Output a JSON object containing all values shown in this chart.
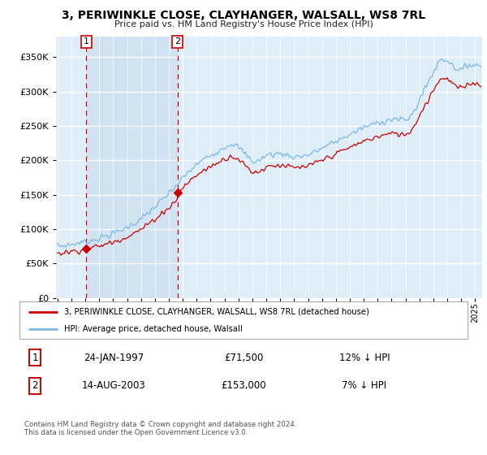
{
  "title": "3, PERIWINKLE CLOSE, CLAYHANGER, WALSALL, WS8 7RL",
  "subtitle": "Price paid vs. HM Land Registry's House Price Index (HPI)",
  "legend_line1": "3, PERIWINKLE CLOSE, CLAYHANGER, WALSALL, WS8 7RL (detached house)",
  "legend_line2": "HPI: Average price, detached house, Walsall",
  "sale1_label": "1",
  "sale1_date": "24-JAN-1997",
  "sale1_price": "£71,500",
  "sale1_hpi": "12% ↓ HPI",
  "sale2_label": "2",
  "sale2_date": "14-AUG-2003",
  "sale2_price": "£153,000",
  "sale2_hpi": "7% ↓ HPI",
  "footer": "Contains HM Land Registry data © Crown copyright and database right 2024.\nThis data is licensed under the Open Government Licence v3.0.",
  "sale1_year": 1997.07,
  "sale1_value": 71500,
  "sale2_year": 2003.62,
  "sale2_value": 153000,
  "hpi_color": "#7ab8e8",
  "sale_color": "#cc0000",
  "bg_color": "#deedf8",
  "shade_color": "#cce0f0",
  "plot_bg": "#deedf8",
  "ylim": [
    0,
    380000
  ],
  "xlim_start": 1994.9,
  "xlim_end": 2025.5
}
